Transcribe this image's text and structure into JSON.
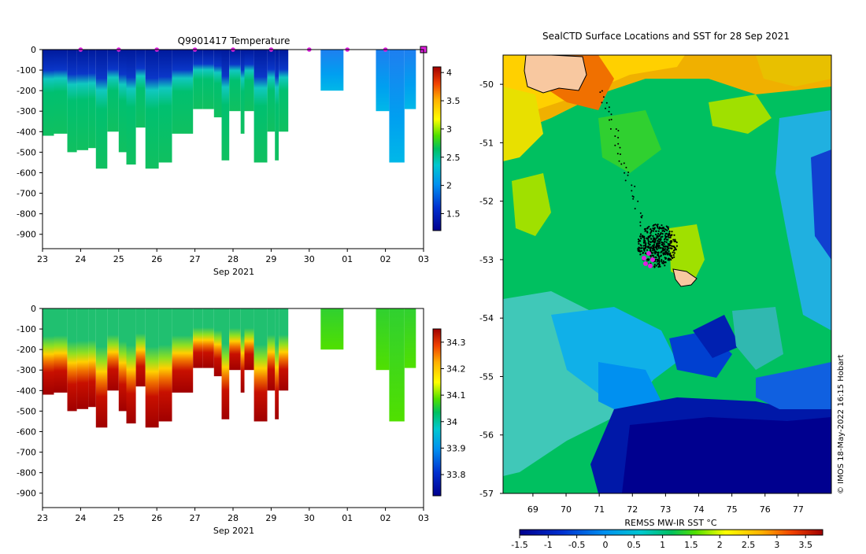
{
  "chart_data": [
    {
      "type": "heatmap",
      "title": "Q9901417  Temperature",
      "xlabel": "Sep 2021",
      "x_ticks": [
        "23",
        "24",
        "25",
        "26",
        "27",
        "28",
        "29",
        "30",
        "01",
        "02",
        "03"
      ],
      "y_ticks": [
        "0",
        "-100",
        "-200",
        "-300",
        "-400",
        "-500",
        "-600",
        "-700",
        "-800",
        "-900"
      ],
      "ylim": [
        -970,
        0
      ],
      "colorbar": {
        "min": 1.2,
        "max": 4.1,
        "ticks": [
          "1.5",
          "2",
          "2.5",
          "3",
          "3.5",
          "4"
        ],
        "tick_values": [
          1.5,
          2,
          2.5,
          3,
          3.5,
          4
        ]
      },
      "profile_markers_days": [
        24,
        25,
        26,
        27,
        28,
        29,
        30,
        31,
        32
      ],
      "profiles": [
        {
          "x0": 0.0,
          "x1": 0.3,
          "depth": 420
        },
        {
          "x0": 0.3,
          "x1": 0.65,
          "depth": 410
        },
        {
          "x0": 0.65,
          "x1": 0.9,
          "depth": 500
        },
        {
          "x0": 0.9,
          "x1": 1.2,
          "depth": 490
        },
        {
          "x0": 1.2,
          "x1": 1.4,
          "depth": 480
        },
        {
          "x0": 1.4,
          "x1": 1.7,
          "depth": 580
        },
        {
          "x0": 1.7,
          "x1": 2.0,
          "depth": 400
        },
        {
          "x0": 2.0,
          "x1": 2.2,
          "depth": 500
        },
        {
          "x0": 2.2,
          "x1": 2.45,
          "depth": 560
        },
        {
          "x0": 2.45,
          "x1": 2.7,
          "depth": 380
        },
        {
          "x0": 2.7,
          "x1": 3.05,
          "depth": 580
        },
        {
          "x0": 3.05,
          "x1": 3.4,
          "depth": 550
        },
        {
          "x0": 3.4,
          "x1": 3.95,
          "depth": 410
        },
        {
          "x0": 3.95,
          "x1": 4.2,
          "depth": 290
        },
        {
          "x0": 4.2,
          "x1": 4.5,
          "depth": 290
        },
        {
          "x0": 4.5,
          "x1": 4.7,
          "depth": 330
        },
        {
          "x0": 4.7,
          "x1": 4.9,
          "depth": 540
        },
        {
          "x0": 4.9,
          "x1": 5.2,
          "depth": 300
        },
        {
          "x0": 5.2,
          "x1": 5.3,
          "depth": 410
        },
        {
          "x0": 5.3,
          "x1": 5.55,
          "depth": 300
        },
        {
          "x0": 5.55,
          "x1": 5.9,
          "depth": 550
        },
        {
          "x0": 5.9,
          "x1": 6.1,
          "depth": 400
        },
        {
          "x0": 6.1,
          "x1": 6.2,
          "depth": 540
        },
        {
          "x0": 6.2,
          "x1": 6.45,
          "depth": 400
        },
        {
          "x0": 7.3,
          "x1": 7.9,
          "depth": 200
        },
        {
          "x0": 8.75,
          "x1": 9.1,
          "depth": 300
        },
        {
          "x0": 9.1,
          "x1": 9.5,
          "depth": 550
        },
        {
          "x0": 9.5,
          "x1": 9.8,
          "depth": 290
        }
      ]
    },
    {
      "type": "heatmap",
      "title": "",
      "xlabel": "Sep 2021",
      "x_ticks": [
        "23",
        "24",
        "25",
        "26",
        "27",
        "28",
        "29",
        "30",
        "01",
        "02",
        "03"
      ],
      "y_ticks": [
        "0",
        "-100",
        "-200",
        "-300",
        "-400",
        "-500",
        "-600",
        "-700",
        "-800",
        "-900"
      ],
      "ylim": [
        -970,
        0
      ],
      "colorbar": {
        "min": 33.72,
        "max": 34.35,
        "ticks": [
          "33.8",
          "33.9",
          "34",
          "34.1",
          "34.2",
          "34.3"
        ],
        "tick_values": [
          33.8,
          33.9,
          34.0,
          34.1,
          34.2,
          34.3
        ]
      }
    },
    {
      "type": "heatmap",
      "title": "SealCTD Surface Locations and SST for 28 Sep 2021",
      "x_ticks": [
        "69",
        "70",
        "71",
        "72",
        "73",
        "74",
        "75",
        "76",
        "77"
      ],
      "y_ticks": [
        "-50",
        "-51",
        "-52",
        "-53",
        "-54",
        "-55",
        "-56",
        "-57"
      ],
      "xlim": [
        68.1,
        78.0
      ],
      "ylim": [
        -57.0,
        -49.5
      ],
      "colorbar": {
        "label": "REMSS MW-IR SST °C",
        "min": -1.5,
        "max": 3.8,
        "ticks": [
          "-1.5",
          "-1",
          "-0.5",
          "0",
          "0.5",
          "1",
          "1.5",
          "2",
          "2.5",
          "3",
          "3.5"
        ],
        "tick_values": [
          -1.5,
          -1,
          -0.5,
          0,
          0.5,
          1,
          1.5,
          2,
          2.5,
          3,
          3.5
        ]
      },
      "credit": "© IMOS 18-May-2022 16:15 Hobart"
    }
  ]
}
